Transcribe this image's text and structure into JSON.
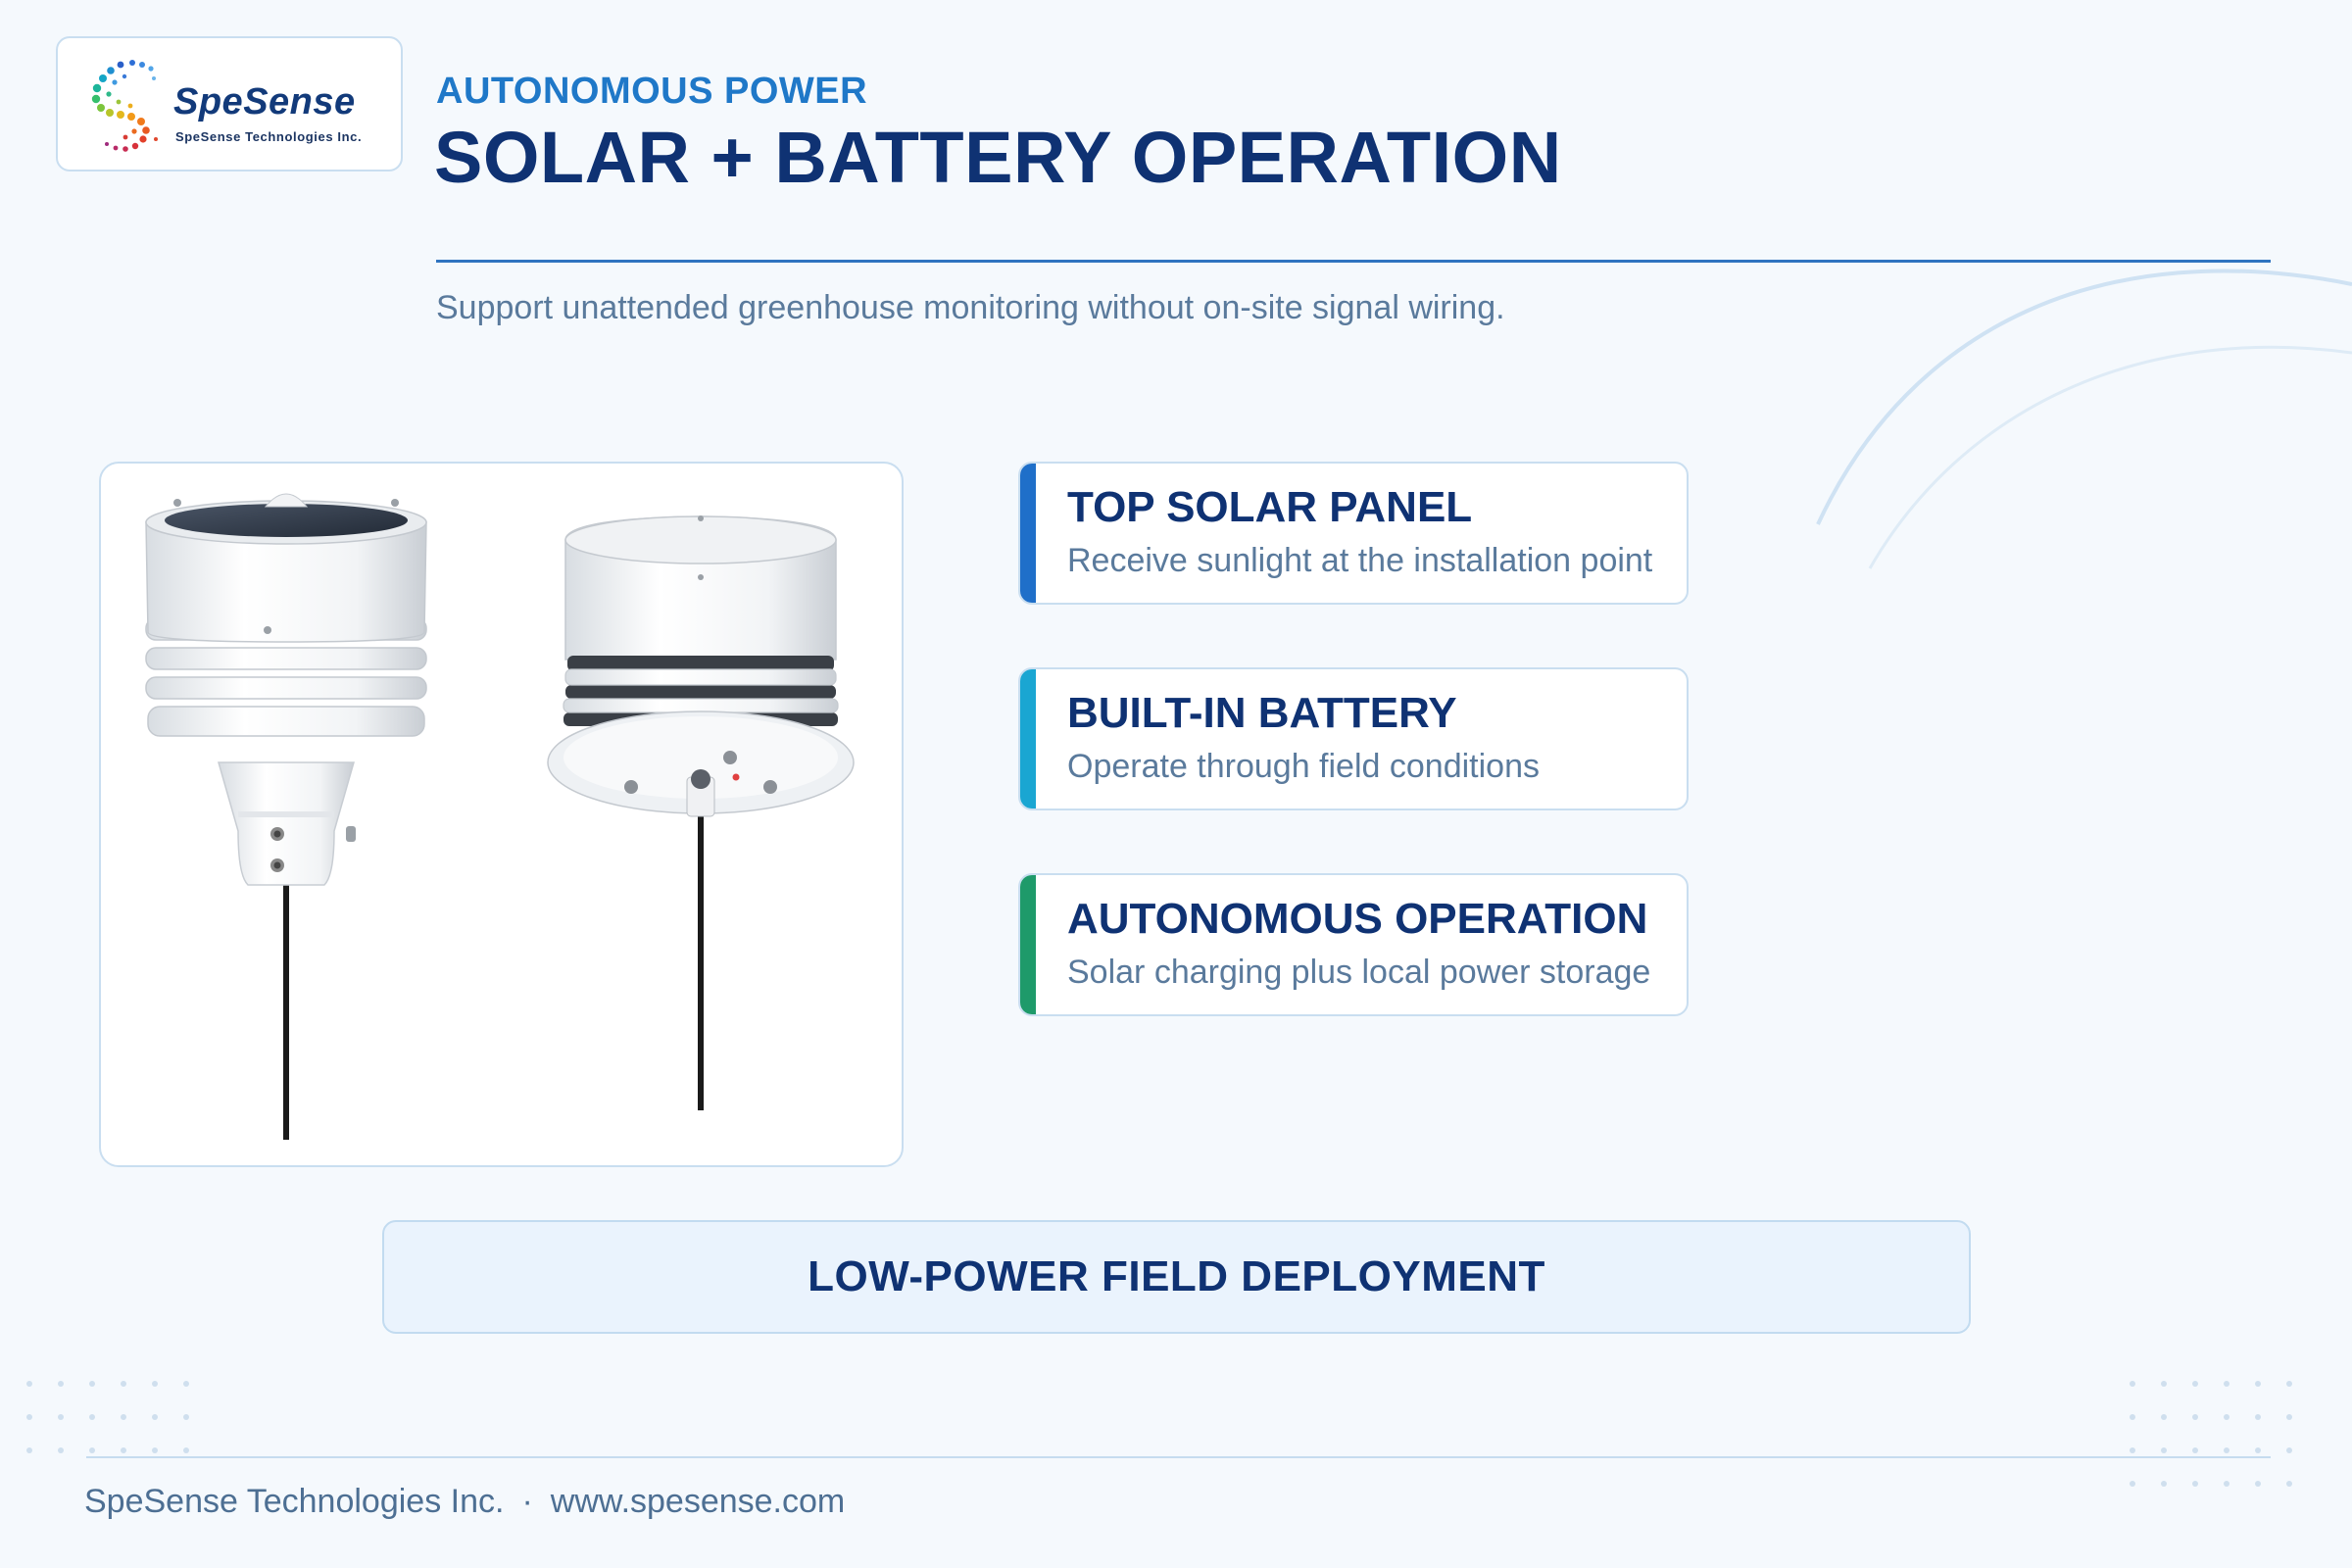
{
  "brand": {
    "name": "SpeSense",
    "tagline": "SpeSense Technologies Inc."
  },
  "header": {
    "eyebrow": "AUTONOMOUS POWER",
    "title": "SOLAR + BATTERY OPERATION",
    "subtitle": "Support unattended greenhouse monitoring without on-site signal wiring."
  },
  "features": [
    {
      "title": "TOP SOLAR PANEL",
      "description": "Receive sunlight at the installation point",
      "accent": "#1f6fc9"
    },
    {
      "title": "BUILT-IN BATTERY",
      "description": "Operate through field conditions",
      "accent": "#1aa6d2"
    },
    {
      "title": "AUTONOMOUS OPERATION",
      "description": "Solar charging plus local power storage",
      "accent": "#1e9a6a"
    }
  ],
  "banner": {
    "label": "LOW-POWER FIELD DEPLOYMENT"
  },
  "footer": {
    "company": "SpeSense Technologies Inc.",
    "separator": "·",
    "website": "www.spesense.com"
  },
  "colors": {
    "navy": "#0f3273",
    "accent_blue": "#1f78c8",
    "background": "#f5f9fd"
  }
}
